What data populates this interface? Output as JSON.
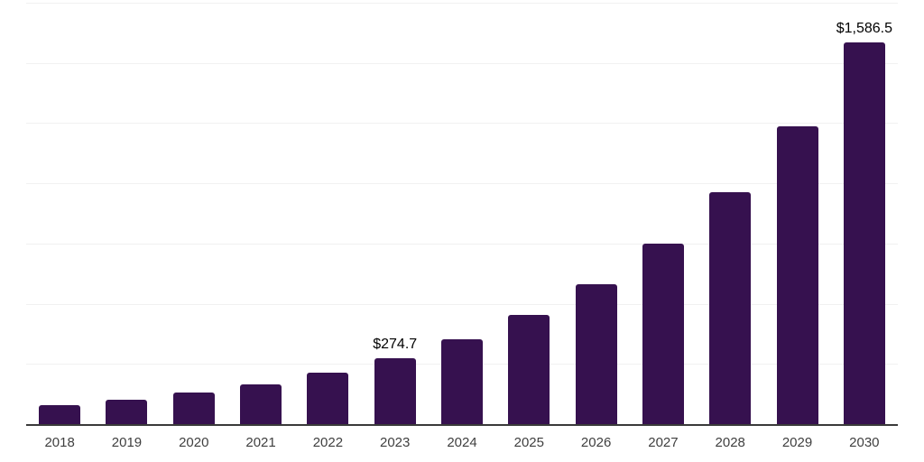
{
  "colors": {
    "background": "#ffffff",
    "bar": "#36114f",
    "gridline": "#f1f1f1",
    "axis_line": "#3a3a3a",
    "year_label": "#3f3f3f",
    "data_label": "#000000"
  },
  "chart_data": {
    "type": "bar",
    "title": "",
    "xlabel": "",
    "ylabel": "",
    "categories": [
      "2018",
      "2019",
      "2020",
      "2021",
      "2022",
      "2023",
      "2024",
      "2025",
      "2026",
      "2027",
      "2028",
      "2029",
      "2030"
    ],
    "values": [
      78.5,
      100.8,
      129.6,
      166.4,
      213.8,
      274.7,
      352.9,
      453.4,
      582.5,
      748.3,
      961.4,
      1235.1,
      1586.5
    ],
    "data_labels": [
      "",
      "",
      "",
      "",
      "",
      "$274.7",
      "",
      "",
      "",
      "",
      "",
      "",
      "$1,586.5"
    ],
    "ylim": [
      0,
      1750
    ],
    "grid_step": 250,
    "grid": "horizontal",
    "y_tick_labels_visible": false,
    "legend": "none"
  }
}
